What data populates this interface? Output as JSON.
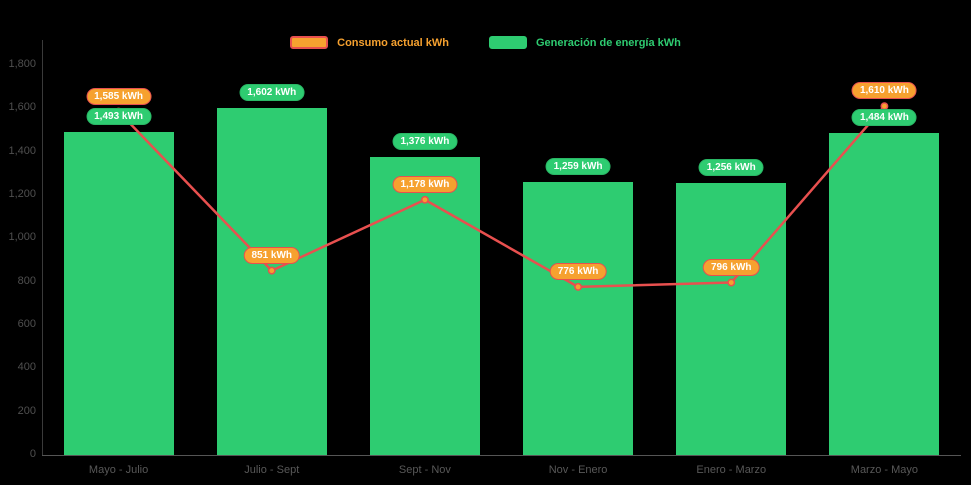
{
  "colors": {
    "background": "#000000",
    "bar": "#2ecc71",
    "line": "#e8504f",
    "marker": "#f6a12f",
    "generation_label_bg": "#2ecc71",
    "consumption_label_bg": "#f6a12f",
    "axis_text": "#4f4f4f"
  },
  "legend": [
    {
      "label": "Consumo actual kWh",
      "color": "#f6a12f",
      "border": "#e8504f"
    },
    {
      "label": "Generación de energía kWh",
      "color": "#2ecc71"
    }
  ],
  "chart_data": {
    "type": "bar",
    "subtype": "bar+line combo",
    "categories": [
      "Mayo - Julio",
      "Julio - Sept",
      "Sept - Nov",
      "Nov - Enero",
      "Enero - Marzo",
      "Marzo - Mayo"
    ],
    "series": [
      {
        "name": "Generación de energía kWh",
        "type": "bar",
        "color": "#2ecc71",
        "values": [
          1493,
          1602,
          1376,
          1259,
          1256,
          1484
        ],
        "labels": [
          "1,493 kWh",
          "1,602 kWh",
          "1,376 kWh",
          "1,259 kWh",
          "1,256 kWh",
          "1,484 kWh"
        ]
      },
      {
        "name": "Consumo actual kWh",
        "type": "line",
        "color": "#e8504f",
        "values": [
          1585,
          851,
          1178,
          776,
          796,
          1610
        ],
        "labels": [
          "1,585 kWh",
          "851 kWh",
          "1,178 kWh",
          "776 kWh",
          "796 kWh",
          "1,610 kWh"
        ]
      }
    ],
    "title": "",
    "xlabel": "",
    "ylabel": "",
    "ylim": [
      0,
      1800
    ],
    "yticks": [
      0,
      200,
      400,
      600,
      800,
      1000,
      1200,
      1400,
      1600,
      1800
    ],
    "ytick_labels": [
      "0",
      "200",
      "400",
      "600",
      "800",
      "1,000",
      "1,200",
      "1,400",
      "1,600",
      "1,800"
    ],
    "grid": false,
    "legend_position": "top"
  }
}
